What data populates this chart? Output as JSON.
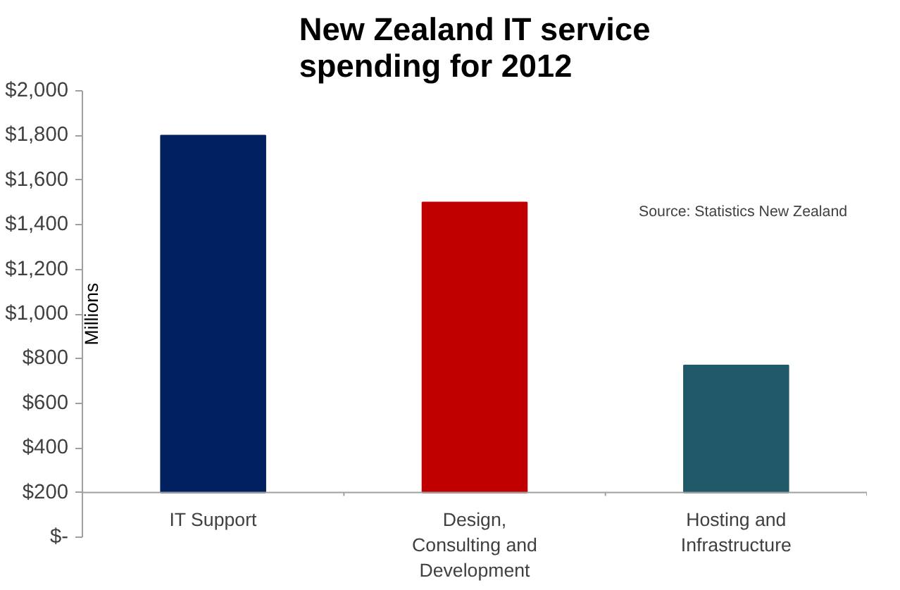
{
  "chart_data": {
    "type": "bar",
    "title": "New Zealand IT service spending for 2012",
    "ylabel": "Millions",
    "categories": [
      "IT Support",
      "Design, Consulting and Development",
      "Hosting and Infrastructure"
    ],
    "base": [
      200,
      200,
      200
    ],
    "values": [
      1600,
      1300,
      570
    ],
    "colors": [
      "#002060",
      "#c00000",
      "#215968"
    ],
    "ylim": [
      0,
      2000
    ],
    "yticks": [
      {
        "value": 0,
        "label": "$-"
      },
      {
        "value": 200,
        "label": "$200"
      },
      {
        "value": 400,
        "label": "$400"
      },
      {
        "value": 600,
        "label": "$600"
      },
      {
        "value": 800,
        "label": "$800"
      },
      {
        "value": 1000,
        "label": "$1,000"
      },
      {
        "value": 1200,
        "label": "$1,200"
      },
      {
        "value": 1400,
        "label": "$1,400"
      },
      {
        "value": 1600,
        "label": "$1,600"
      },
      {
        "value": 1800,
        "label": "$1,800"
      },
      {
        "value": 2000,
        "label": "$2,000"
      }
    ],
    "annotations": [
      "Source: Statistics New Zealand"
    ],
    "grid": false
  }
}
